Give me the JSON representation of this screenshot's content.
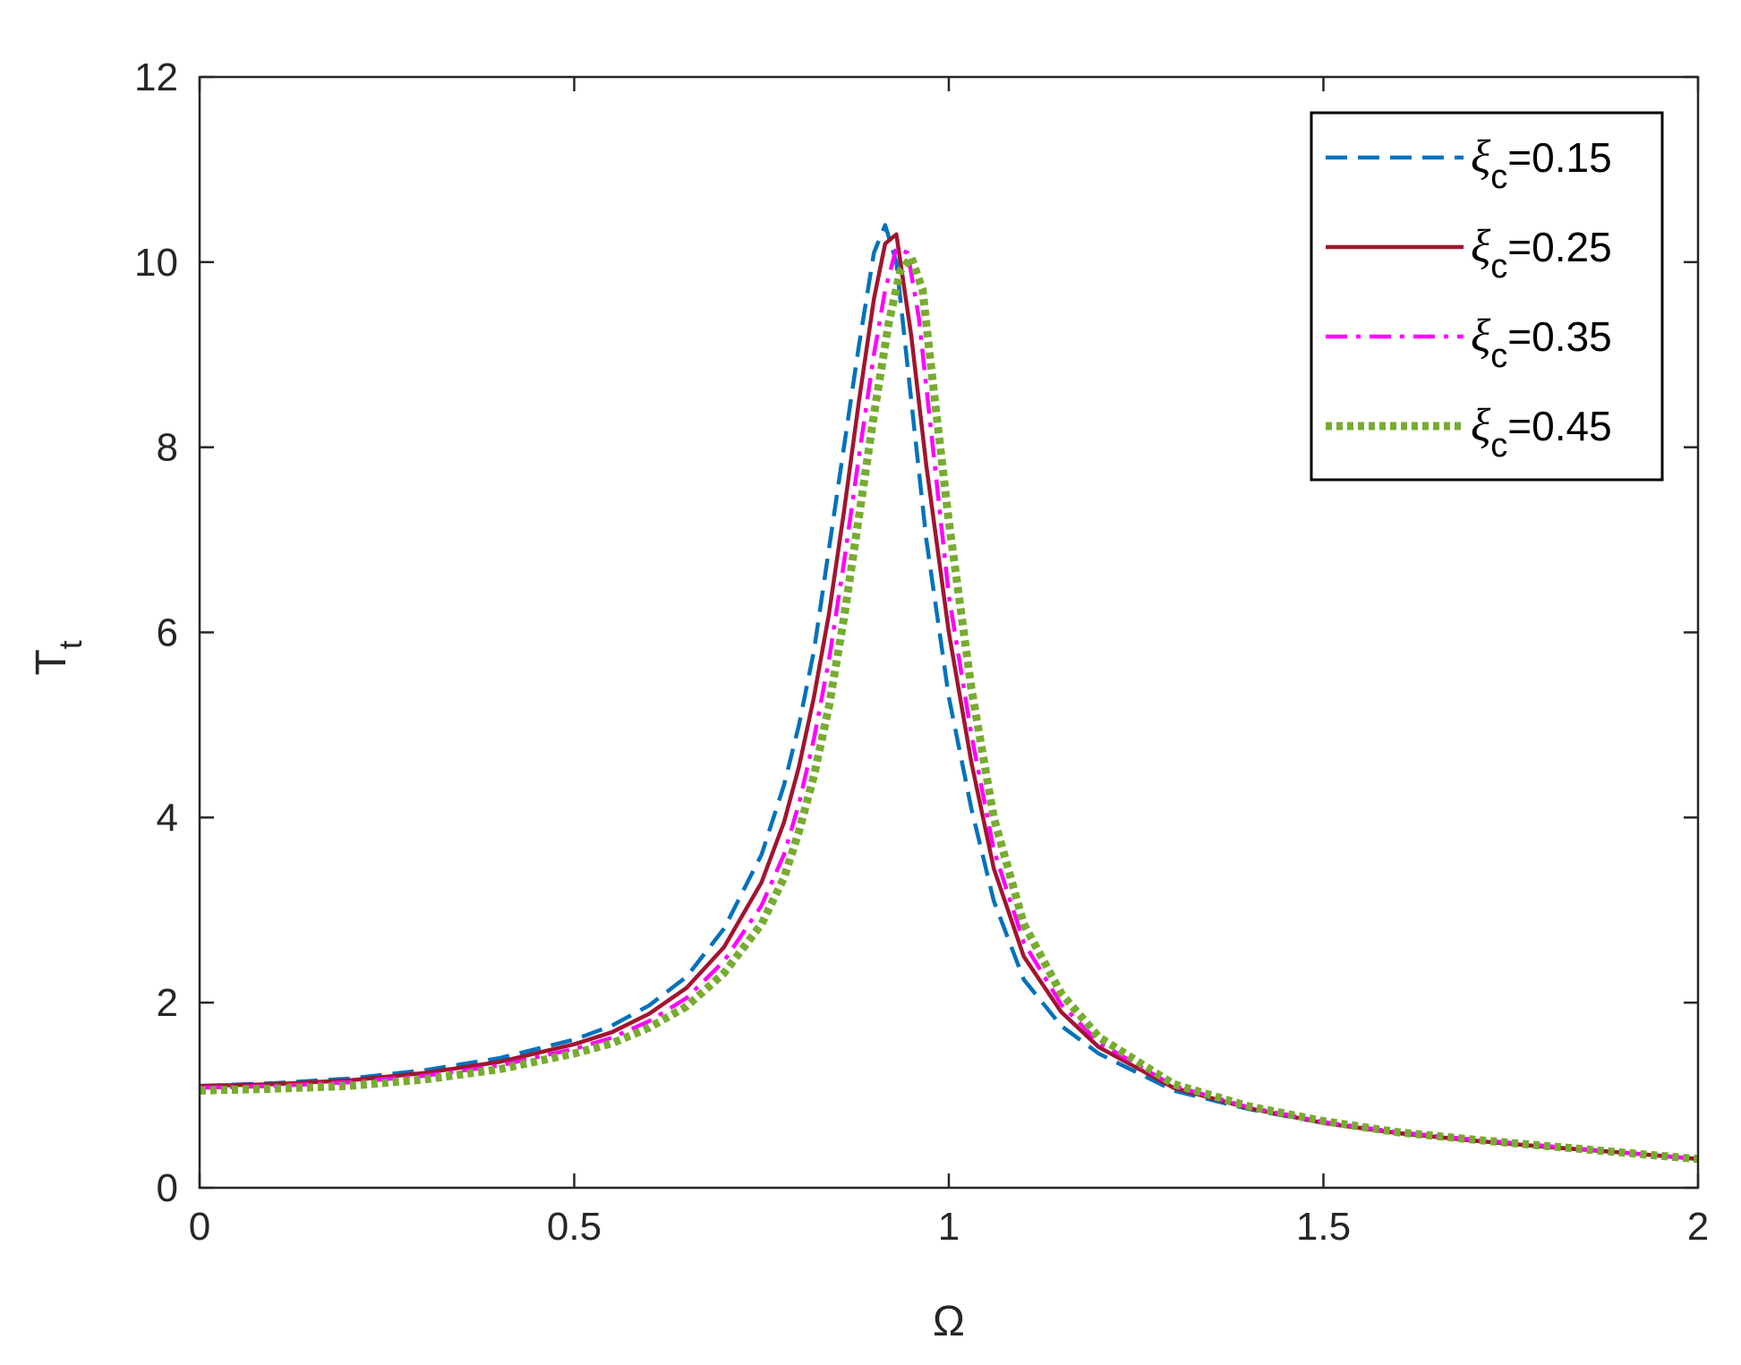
{
  "chart_data": {
    "type": "line",
    "xlabel": "Ω",
    "ylabel_main": "T",
    "ylabel_sub": "t",
    "xlim": [
      0,
      2
    ],
    "ylim": [
      0,
      12
    ],
    "xticks": [
      0,
      0.5,
      1,
      1.5,
      2
    ],
    "xtick_labels": [
      "0",
      "0.5",
      "1",
      "1.5",
      "2"
    ],
    "yticks": [
      0,
      2,
      4,
      6,
      8,
      10,
      12
    ],
    "ytick_labels": [
      "0",
      "2",
      "4",
      "6",
      "8",
      "10",
      "12"
    ],
    "grid": false,
    "legend_position": "top-right",
    "series": [
      {
        "label_symbol": "ξ",
        "label_sub": "c",
        "label_value": "=0.15",
        "color": "#0072BD",
        "style": "dashed",
        "x": [
          0,
          0.1,
          0.2,
          0.3,
          0.4,
          0.5,
          0.55,
          0.6,
          0.65,
          0.7,
          0.75,
          0.78,
          0.8,
          0.82,
          0.84,
          0.86,
          0.88,
          0.9,
          0.915,
          0.93,
          0.95,
          0.97,
          1.0,
          1.03,
          1.06,
          1.1,
          1.15,
          1.2,
          1.3,
          1.4,
          1.5,
          1.6,
          1.7,
          1.8,
          1.9,
          2.0
        ],
        "y": [
          1.1,
          1.13,
          1.18,
          1.27,
          1.4,
          1.6,
          1.75,
          1.97,
          2.28,
          2.8,
          3.6,
          4.35,
          5.0,
          5.8,
          6.9,
          8.0,
          9.1,
          10.1,
          10.4,
          10.0,
          8.5,
          7.0,
          5.3,
          4.1,
          3.1,
          2.25,
          1.75,
          1.45,
          1.05,
          0.85,
          0.7,
          0.59,
          0.51,
          0.44,
          0.38,
          0.31
        ]
      },
      {
        "label_symbol": "ξ",
        "label_sub": "c",
        "label_value": "=0.25",
        "color": "#A2142F",
        "style": "solid",
        "x": [
          0,
          0.1,
          0.2,
          0.3,
          0.4,
          0.5,
          0.55,
          0.6,
          0.65,
          0.7,
          0.75,
          0.78,
          0.8,
          0.82,
          0.84,
          0.86,
          0.88,
          0.9,
          0.915,
          0.93,
          0.95,
          0.97,
          1.0,
          1.03,
          1.06,
          1.1,
          1.15,
          1.2,
          1.3,
          1.4,
          1.5,
          1.6,
          1.7,
          1.8,
          1.9,
          2.0
        ],
        "y": [
          1.1,
          1.12,
          1.16,
          1.24,
          1.36,
          1.55,
          1.68,
          1.88,
          2.16,
          2.6,
          3.3,
          3.95,
          4.55,
          5.3,
          6.2,
          7.3,
          8.5,
          9.6,
          10.2,
          10.3,
          9.2,
          7.8,
          6.0,
          4.6,
          3.45,
          2.5,
          1.9,
          1.52,
          1.08,
          0.86,
          0.7,
          0.59,
          0.51,
          0.44,
          0.38,
          0.31
        ]
      },
      {
        "label_symbol": "ξ",
        "label_sub": "c",
        "label_value": "=0.35",
        "color": "#FF00FF",
        "style": "dashdot",
        "x": [
          0,
          0.1,
          0.2,
          0.3,
          0.4,
          0.5,
          0.55,
          0.6,
          0.65,
          0.7,
          0.75,
          0.78,
          0.8,
          0.82,
          0.84,
          0.86,
          0.88,
          0.9,
          0.915,
          0.93,
          0.945,
          0.96,
          0.98,
          1.0,
          1.03,
          1.06,
          1.1,
          1.15,
          1.2,
          1.3,
          1.4,
          1.5,
          1.6,
          1.7,
          1.8,
          1.9,
          2.0
        ],
        "y": [
          1.08,
          1.1,
          1.14,
          1.21,
          1.32,
          1.5,
          1.62,
          1.8,
          2.05,
          2.45,
          3.05,
          3.6,
          4.15,
          4.85,
          5.7,
          6.75,
          7.9,
          9.0,
          9.7,
          10.15,
          10.1,
          9.4,
          7.9,
          6.4,
          4.9,
          3.65,
          2.65,
          1.98,
          1.57,
          1.1,
          0.87,
          0.71,
          0.6,
          0.52,
          0.45,
          0.38,
          0.31
        ]
      },
      {
        "label_symbol": "ξ",
        "label_sub": "c",
        "label_value": "=0.45",
        "color": "#77AC30",
        "style": "dotted",
        "x": [
          0,
          0.1,
          0.2,
          0.3,
          0.4,
          0.5,
          0.55,
          0.6,
          0.65,
          0.7,
          0.75,
          0.78,
          0.8,
          0.82,
          0.84,
          0.86,
          0.88,
          0.9,
          0.92,
          0.935,
          0.95,
          0.965,
          0.98,
          1.0,
          1.03,
          1.06,
          1.1,
          1.15,
          1.2,
          1.3,
          1.4,
          1.5,
          1.6,
          1.7,
          1.8,
          1.9,
          2.0
        ],
        "y": [
          1.05,
          1.07,
          1.1,
          1.17,
          1.28,
          1.45,
          1.56,
          1.73,
          1.96,
          2.32,
          2.85,
          3.35,
          3.85,
          4.45,
          5.2,
          6.15,
          7.25,
          8.35,
          9.35,
          9.9,
          10.05,
          9.7,
          8.6,
          7.2,
          5.4,
          4.0,
          2.85,
          2.1,
          1.63,
          1.12,
          0.88,
          0.72,
          0.6,
          0.52,
          0.45,
          0.38,
          0.31
        ]
      }
    ]
  }
}
